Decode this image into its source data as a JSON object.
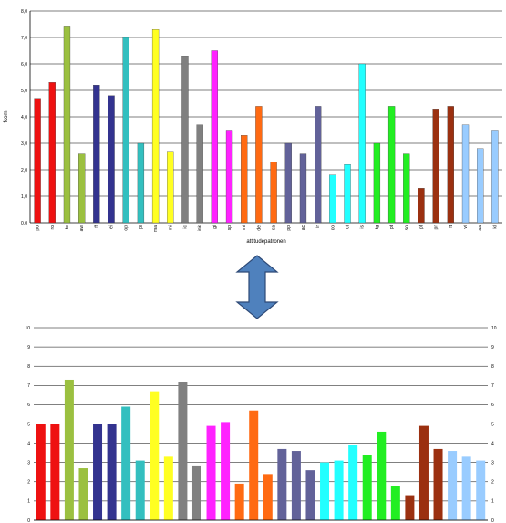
{
  "chart_data": [
    {
      "type": "bar",
      "ylabel": "fcom",
      "xlabel": "attitudepatronen",
      "ylim": [
        0,
        8
      ],
      "yticks": [
        "0,0",
        "1,0",
        "2,0",
        "3,0",
        "4,0",
        "5,0",
        "6,0",
        "7,0",
        "8,0"
      ],
      "grid": true,
      "categories": [
        "po",
        "ro",
        "te",
        "aw",
        "ff",
        "ei",
        "op",
        "pi",
        "ma",
        "mi",
        "ic",
        "ink",
        "gi",
        "sp",
        "mi",
        "de",
        "ca",
        "pp",
        "ac",
        "ir",
        "co",
        "ct",
        "is",
        "tg",
        "pt",
        "so",
        "pt",
        "pr",
        "ft",
        "vi",
        "aa",
        "kl"
      ],
      "values": [
        4.7,
        5.3,
        7.4,
        2.6,
        5.2,
        4.8,
        7.0,
        3.0,
        7.3,
        2.7,
        6.3,
        3.7,
        6.5,
        3.5,
        3.3,
        4.4,
        2.3,
        3.0,
        2.6,
        4.4,
        1.8,
        2.2,
        6.0,
        3.0,
        4.4,
        2.6,
        1.3,
        4.3,
        4.4,
        3.7,
        2.8,
        3.5
      ],
      "colors": [
        "#ee1111",
        "#ee1111",
        "#9bc040",
        "#9bc040",
        "#33338f",
        "#33338f",
        "#33bfbf",
        "#33bfbf",
        "#ffff22",
        "#ffff22",
        "#808080",
        "#808080",
        "#ff22ff",
        "#ff22ff",
        "#ff6a12",
        "#ff6a12",
        "#ff6a12",
        "#626299",
        "#626299",
        "#626299",
        "#22ffff",
        "#22ffff",
        "#22ffff",
        "#22ee22",
        "#22ee22",
        "#22ee22",
        "#9b3010",
        "#9b3010",
        "#9b3010",
        "#99ccff",
        "#99ccff",
        "#99ccff"
      ]
    },
    {
      "type": "bar",
      "ylim": [
        0,
        10
      ],
      "yticks": [
        "0",
        "1",
        "2",
        "3",
        "4",
        "5",
        "6",
        "7",
        "8",
        "9",
        "10"
      ],
      "grid": true,
      "values": [
        5.0,
        5.0,
        7.3,
        2.7,
        5.0,
        5.0,
        5.9,
        3.1,
        6.7,
        3.3,
        7.2,
        2.8,
        4.9,
        5.1,
        1.9,
        5.7,
        2.4,
        3.7,
        3.6,
        2.6,
        3.0,
        3.1,
        3.9,
        3.4,
        4.6,
        1.8,
        1.3,
        4.9,
        3.7,
        3.6,
        3.3,
        3.1
      ],
      "colors": [
        "#ee1111",
        "#ee1111",
        "#9bc040",
        "#9bc040",
        "#33338f",
        "#33338f",
        "#33bfbf",
        "#33bfbf",
        "#ffff22",
        "#ffff22",
        "#808080",
        "#808080",
        "#ff22ff",
        "#ff22ff",
        "#ff6a12",
        "#ff6a12",
        "#ff6a12",
        "#626299",
        "#626299",
        "#626299",
        "#22ffff",
        "#22ffff",
        "#22ffff",
        "#22ee22",
        "#22ee22",
        "#22ee22",
        "#9b3010",
        "#9b3010",
        "#9b3010",
        "#99ccff",
        "#99ccff",
        "#99ccff"
      ]
    }
  ],
  "arrow": {
    "icon": "double-arrow-vertical-icon",
    "color": "#4f81bd",
    "border": "#2e4a77"
  }
}
